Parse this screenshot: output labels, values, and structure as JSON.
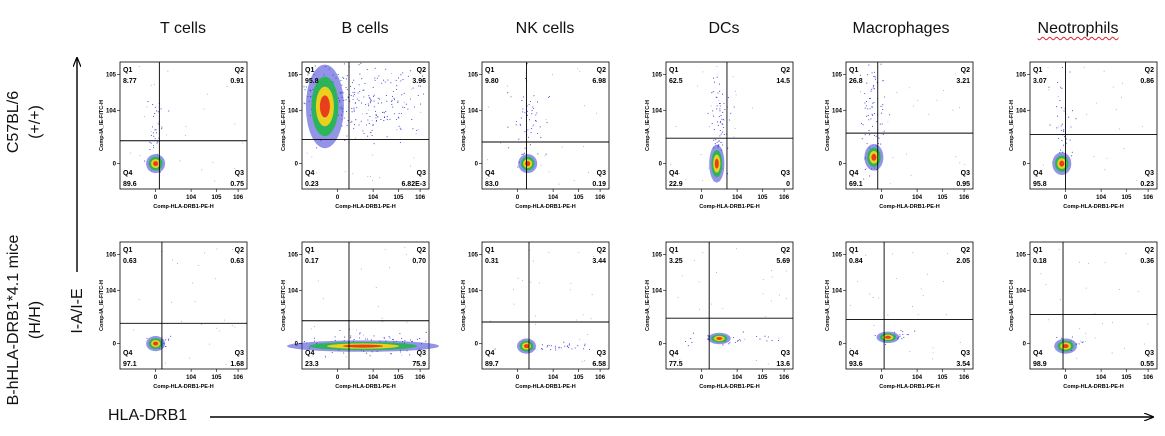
{
  "columns": [
    "T cells",
    "B cells",
    "NK cells",
    "DCs",
    "Macrophages",
    "Neotrophils"
  ],
  "rows": [
    {
      "line1": "C57BL/6",
      "line2": "(+/+)"
    },
    {
      "line1": "B-hHLA-DRB1*4.1 mice",
      "line2": "(H/H)"
    }
  ],
  "y_axis_label": "I-A/I-E",
  "x_axis_label": "HLA-DRB1",
  "plot_xlabel": "Comp-HLA-DRB1-PE-H",
  "plot_ylabel": "Comp-IA_IE-FITC-H",
  "quadrant_names": [
    "Q1",
    "Q2",
    "Q3",
    "Q4"
  ],
  "colors": {
    "sparse": "#3a3ad6",
    "dense_mid": "#21b84a",
    "dense_hi": "#f5d31b",
    "peak": "#e8361c",
    "lines": "#000000"
  },
  "chart_data": {
    "type": "scatter",
    "subtype": "flow-cytometry-quadrant-density",
    "x_ticks": [
      "0",
      "10^4",
      "10^5",
      "10^6"
    ],
    "y_ticks": [
      "0",
      "10^4",
      "10^5"
    ],
    "panels": [
      {
        "row": 0,
        "col": 0,
        "q1": "8.77",
        "q2": "0.91",
        "q3": "0.75",
        "q4": "89.6"
      },
      {
        "row": 0,
        "col": 1,
        "q1": "95.8",
        "q2": "3.96",
        "q3": "6.82E-3",
        "q4": "0.23"
      },
      {
        "row": 0,
        "col": 2,
        "q1": "9.80",
        "q2": "6.98",
        "q3": "0.19",
        "q4": "83.0"
      },
      {
        "row": 0,
        "col": 3,
        "q1": "62.5",
        "q2": "14.5",
        "q3": "0",
        "q4": "22.9"
      },
      {
        "row": 0,
        "col": 4,
        "q1": "26.8",
        "q2": "3.21",
        "q3": "0.95",
        "q4": "69.1"
      },
      {
        "row": 0,
        "col": 5,
        "q1": "3.07",
        "q2": "0.86",
        "q3": "0.23",
        "q4": "95.8"
      },
      {
        "row": 1,
        "col": 0,
        "q1": "0.63",
        "q2": "0.63",
        "q3": "1.68",
        "q4": "97.1"
      },
      {
        "row": 1,
        "col": 1,
        "q1": "0.17",
        "q2": "0.70",
        "q3": "75.9",
        "q4": "23.3"
      },
      {
        "row": 1,
        "col": 2,
        "q1": "0.31",
        "q2": "3.44",
        "q3": "6.58",
        "q4": "89.7"
      },
      {
        "row": 1,
        "col": 3,
        "q1": "3.25",
        "q2": "5.69",
        "q3": "13.6",
        "q4": "77.5"
      },
      {
        "row": 1,
        "col": 4,
        "q1": "0.84",
        "q2": "2.05",
        "q3": "3.54",
        "q4": "93.6"
      },
      {
        "row": 1,
        "col": 5,
        "q1": "0.18",
        "q2": "0.36",
        "q3": "0.55",
        "q4": "98.9"
      }
    ]
  }
}
